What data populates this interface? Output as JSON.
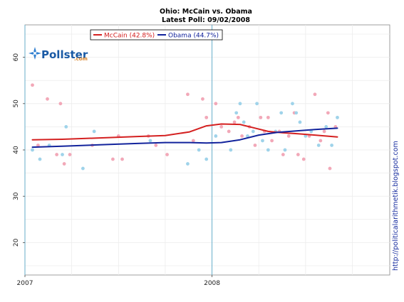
{
  "chart_data": {
    "type": "scatter",
    "title": "Ohio: McCain vs. Obama",
    "subtitle": "Latest Poll: 09/02/2008",
    "xlabel": "",
    "ylabel": "",
    "x_ticks": [
      "2007",
      "2008"
    ],
    "x_tick_values": [
      2007.0,
      2008.0
    ],
    "xlim": [
      2007.0,
      2008.95
    ],
    "y_ticks": [
      20,
      30,
      40,
      50,
      60
    ],
    "ylim": [
      13,
      67
    ],
    "grid": true,
    "legend_position": "top-left",
    "vertical_markers": [
      2007.0,
      2008.0
    ],
    "series": [
      {
        "name": "McCain (42.8%)",
        "color": "#d42020",
        "point_color": "#f2a8b8",
        "trend": [
          [
            2007.04,
            42.2
          ],
          [
            2007.2,
            42.3
          ],
          [
            2007.4,
            42.6
          ],
          [
            2007.6,
            42.9
          ],
          [
            2007.75,
            43.1
          ],
          [
            2007.88,
            43.9
          ],
          [
            2007.97,
            45.2
          ],
          [
            2008.05,
            45.6
          ],
          [
            2008.15,
            45.5
          ],
          [
            2008.22,
            44.8
          ],
          [
            2008.3,
            44.0
          ],
          [
            2008.38,
            43.7
          ],
          [
            2008.46,
            43.5
          ],
          [
            2008.55,
            43.2
          ],
          [
            2008.67,
            42.8
          ]
        ],
        "points": [
          [
            2007.04,
            54
          ],
          [
            2007.07,
            41
          ],
          [
            2007.12,
            51
          ],
          [
            2007.17,
            39
          ],
          [
            2007.19,
            50
          ],
          [
            2007.21,
            37
          ],
          [
            2007.24,
            39
          ],
          [
            2007.36,
            41
          ],
          [
            2007.47,
            38
          ],
          [
            2007.5,
            43
          ],
          [
            2007.52,
            38
          ],
          [
            2007.66,
            43
          ],
          [
            2007.7,
            41
          ],
          [
            2007.76,
            39
          ],
          [
            2007.87,
            52
          ],
          [
            2007.9,
            42
          ],
          [
            2007.95,
            51
          ],
          [
            2007.97,
            47
          ],
          [
            2008.02,
            50
          ],
          [
            2008.05,
            45
          ],
          [
            2008.09,
            44
          ],
          [
            2008.12,
            46
          ],
          [
            2008.14,
            47
          ],
          [
            2008.16,
            43
          ],
          [
            2008.2,
            45
          ],
          [
            2008.23,
            41
          ],
          [
            2008.26,
            47
          ],
          [
            2008.28,
            44
          ],
          [
            2008.3,
            47
          ],
          [
            2008.32,
            42
          ],
          [
            2008.36,
            44
          ],
          [
            2008.38,
            39
          ],
          [
            2008.41,
            43
          ],
          [
            2008.44,
            48
          ],
          [
            2008.46,
            39
          ],
          [
            2008.49,
            38
          ],
          [
            2008.52,
            43
          ],
          [
            2008.55,
            52
          ],
          [
            2008.58,
            42
          ],
          [
            2008.6,
            44
          ],
          [
            2008.62,
            48
          ],
          [
            2008.63,
            36
          ],
          [
            2008.66,
            45
          ]
        ]
      },
      {
        "name": "Obama (44.7%)",
        "color": "#12239c",
        "point_color": "#9fd3ea",
        "trend": [
          [
            2007.04,
            40.6
          ],
          [
            2007.2,
            40.8
          ],
          [
            2007.4,
            41.1
          ],
          [
            2007.6,
            41.4
          ],
          [
            2007.75,
            41.6
          ],
          [
            2007.88,
            41.6
          ],
          [
            2007.97,
            41.5
          ],
          [
            2008.05,
            41.6
          ],
          [
            2008.15,
            42.2
          ],
          [
            2008.25,
            43.2
          ],
          [
            2008.35,
            43.8
          ],
          [
            2008.45,
            44.1
          ],
          [
            2008.55,
            44.4
          ],
          [
            2008.67,
            44.7
          ]
        ],
        "points": [
          [
            2007.04,
            40
          ],
          [
            2007.08,
            38
          ],
          [
            2007.13,
            41
          ],
          [
            2007.2,
            39
          ],
          [
            2007.22,
            45
          ],
          [
            2007.31,
            36
          ],
          [
            2007.37,
            44
          ],
          [
            2007.67,
            42
          ],
          [
            2007.87,
            37
          ],
          [
            2007.93,
            40
          ],
          [
            2007.97,
            38
          ],
          [
            2008.02,
            43
          ],
          [
            2008.1,
            40
          ],
          [
            2008.13,
            48
          ],
          [
            2008.15,
            50
          ],
          [
            2008.17,
            46
          ],
          [
            2008.19,
            43
          ],
          [
            2008.22,
            44
          ],
          [
            2008.24,
            50
          ],
          [
            2008.27,
            42
          ],
          [
            2008.3,
            40
          ],
          [
            2008.34,
            44
          ],
          [
            2008.37,
            48
          ],
          [
            2008.39,
            40
          ],
          [
            2008.43,
            50
          ],
          [
            2008.45,
            48
          ],
          [
            2008.47,
            46
          ],
          [
            2008.5,
            43
          ],
          [
            2008.53,
            44
          ],
          [
            2008.57,
            41
          ],
          [
            2008.61,
            45
          ],
          [
            2008.64,
            41
          ],
          [
            2008.67,
            47
          ]
        ]
      }
    ]
  },
  "branding": {
    "logo_main": "Pollster",
    "logo_suffix": ".com",
    "watermark": "http://politicalarithmetik.blogspot.com"
  }
}
